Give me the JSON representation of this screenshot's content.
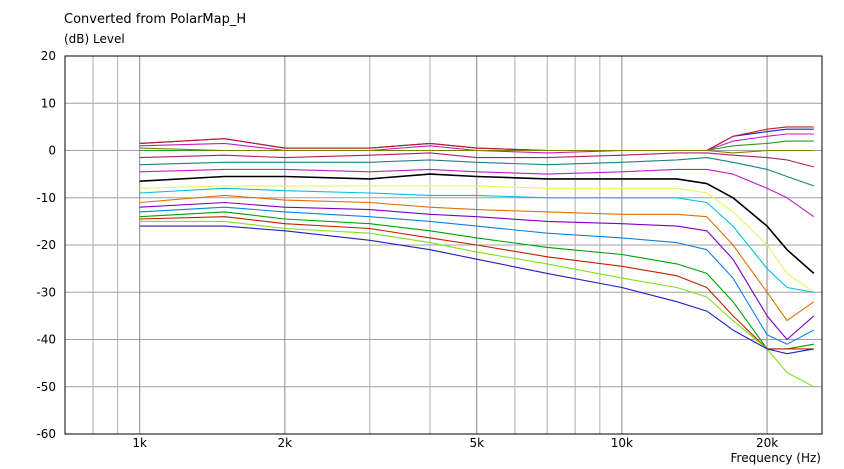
{
  "chart_data": {
    "type": "line",
    "title": "Converted from PolarMap_H",
    "ylabel": "(dB)  Level",
    "xlabel": "Frequency  (Hz)",
    "xscale": "log",
    "xlim": [
      700,
      26000
    ],
    "ylim": [
      -60,
      20
    ],
    "grid": true,
    "y_ticks": [
      20,
      10,
      0,
      -10,
      -20,
      -30,
      -40,
      -50,
      -60
    ],
    "y_tick_labels": [
      "20",
      "10",
      "0",
      "-10",
      "-20",
      "-30",
      "-40",
      "-50",
      "-60"
    ],
    "x_ticks": [
      1000,
      2000,
      5000,
      10000,
      20000
    ],
    "x_tick_labels": [
      "1k",
      "2k",
      "5k",
      "10k",
      "20k"
    ],
    "x_grid": [
      800,
      900,
      1000,
      2000,
      3000,
      4000,
      5000,
      6000,
      7000,
      8000,
      9000,
      10000,
      20000
    ],
    "x": [
      1000,
      1500,
      2000,
      3000,
      4000,
      5000,
      7000,
      10000,
      13000,
      15000,
      17000,
      20000,
      22000,
      25000
    ],
    "series": [
      {
        "color": "#2020c0",
        "values": [
          1.5,
          2.5,
          0.5,
          0.5,
          1.5,
          0.5,
          0,
          0,
          0,
          0,
          3,
          4,
          4.5,
          4.5
        ]
      },
      {
        "color": "#c02020",
        "values": [
          1.5,
          2.5,
          0.5,
          0.5,
          1.5,
          0.5,
          0,
          0,
          0,
          0,
          3,
          4.5,
          5,
          5
        ]
      },
      {
        "color": "#c020c0",
        "values": [
          1,
          1.5,
          0,
          0,
          1,
          0,
          -0.5,
          0,
          0,
          0,
          2,
          3,
          3.5,
          3.5
        ]
      },
      {
        "color": "#20a020",
        "values": [
          0,
          0,
          0,
          0,
          0,
          0,
          0,
          0,
          0,
          0,
          1,
          1.5,
          2,
          2
        ]
      },
      {
        "color": "#808000",
        "values": [
          0.5,
          0,
          0,
          0,
          0,
          0,
          0,
          0,
          0,
          0,
          -0.5,
          0,
          0,
          0
        ]
      },
      {
        "color": "#b02060",
        "values": [
          -1.5,
          -1,
          -1.5,
          -1,
          -0.5,
          -1.5,
          -1.5,
          -1,
          -0.5,
          -0.5,
          -1,
          -1.5,
          -2,
          -3.5
        ]
      },
      {
        "color": "#208080",
        "values": [
          -3,
          -2.5,
          -2.5,
          -2.5,
          -2,
          -2.5,
          -3,
          -2.5,
          -2,
          -1.5,
          -2.5,
          -4,
          -5.5,
          -7.5
        ]
      },
      {
        "color": "#c020c0",
        "values": [
          -4.5,
          -4,
          -4,
          -4.5,
          -4,
          -4.5,
          -5,
          -4.5,
          -4,
          -4,
          -5,
          -8,
          -10,
          -14
        ]
      },
      {
        "color": "#000000",
        "values": [
          -6.5,
          -5.5,
          -5.5,
          -6,
          -5,
          -5.5,
          -6,
          -6,
          -6,
          -7,
          -10,
          -16,
          -21,
          -26
        ]
      },
      {
        "color": "#f0f060",
        "values": [
          -8,
          -7.5,
          -7.5,
          -7.5,
          -7.5,
          -7.5,
          -8,
          -8,
          -8,
          -9,
          -13,
          -20,
          -26,
          -30
        ]
      },
      {
        "color": "#00c0e0",
        "values": [
          -9,
          -8,
          -8.5,
          -9,
          -9.5,
          -9.5,
          -10,
          -10,
          -10,
          -11,
          -16,
          -25,
          -29,
          -30
        ]
      },
      {
        "color": "#e07000",
        "values": [
          -11,
          -9.5,
          -10.5,
          -11,
          -12,
          -12.5,
          -13,
          -13.5,
          -13.5,
          -14,
          -20,
          -30,
          -36,
          -32
        ]
      },
      {
        "color": "#8000c0",
        "values": [
          -12,
          -11,
          -12,
          -12.5,
          -13.5,
          -14,
          -15,
          -15.5,
          -16,
          -17,
          -23,
          -35,
          -40,
          -35
        ]
      },
      {
        "color": "#1080e0",
        "values": [
          -13,
          -12,
          -13,
          -14,
          -15,
          -16,
          -17.5,
          -18.5,
          -19.5,
          -21,
          -27,
          -39,
          -41,
          -38
        ]
      },
      {
        "color": "#00a000",
        "values": [
          -14,
          -13,
          -14.5,
          -15.5,
          -17,
          -18.5,
          -20.5,
          -22,
          -24,
          -26,
          -32,
          -42,
          -42,
          -41
        ]
      },
      {
        "color": "#c02000",
        "values": [
          -14.5,
          -14,
          -15.5,
          -16.5,
          -18.5,
          -20,
          -22.5,
          -24.5,
          -26.5,
          -29,
          -35,
          -42,
          -42,
          -42
        ]
      },
      {
        "color": "#80e020",
        "values": [
          -15,
          -15,
          -16.5,
          -17.5,
          -19.5,
          -21.5,
          -24,
          -27,
          -29,
          -31,
          -36,
          -42,
          -47,
          -50
        ]
      },
      {
        "color": "#2020c0",
        "values": [
          -16,
          -16,
          -17,
          -19,
          -21,
          -23,
          -26,
          -29,
          -32,
          -34,
          -38,
          -42,
          -43,
          -42
        ]
      }
    ]
  }
}
